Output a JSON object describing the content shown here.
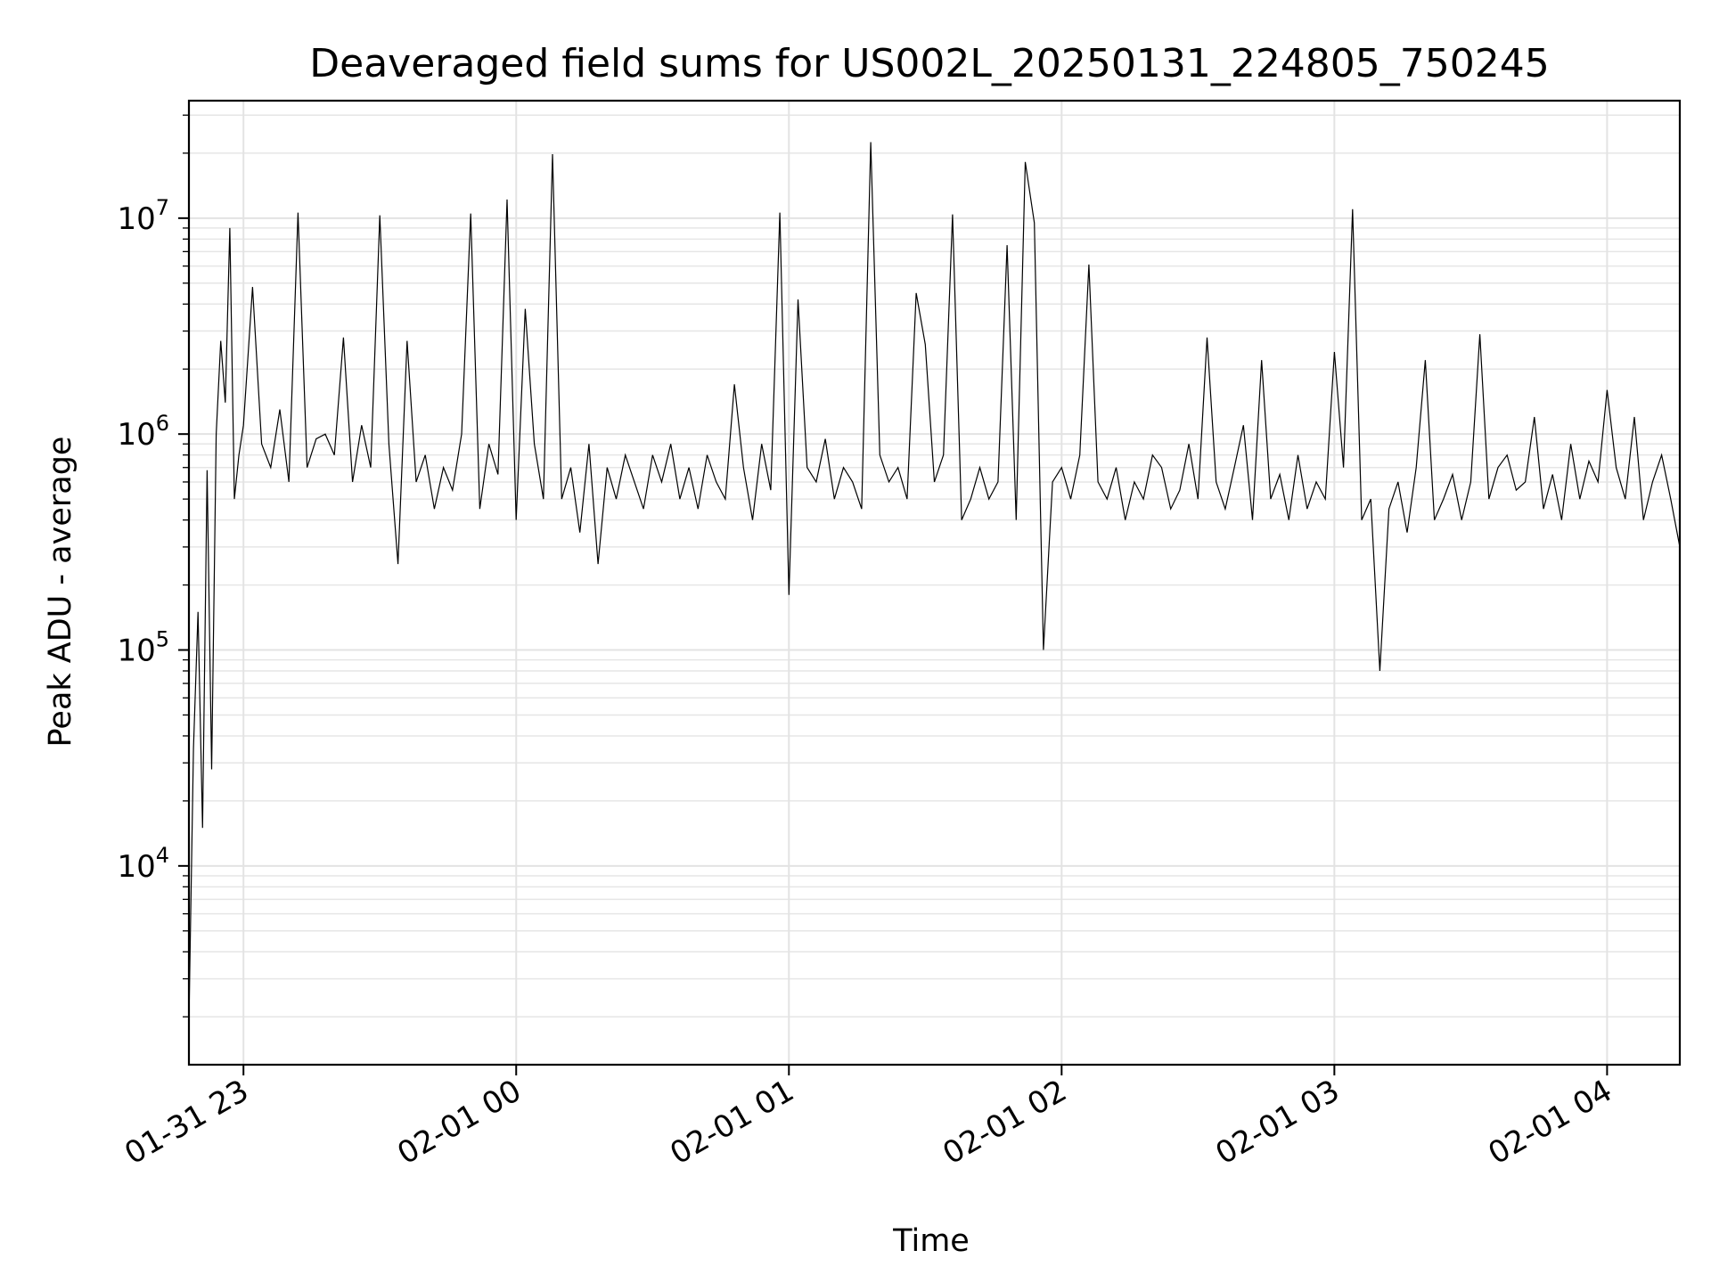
{
  "chart_data": {
    "type": "line",
    "title": "Deaveraged field sums for US002L_20250131_224805_750245",
    "xlabel": "Time",
    "ylabel": "Peak ADU - average",
    "yscale": "log",
    "grid": true,
    "legend": "none",
    "x_range": [
      "2025-01-31 22:48",
      "2025-02-01 04:16"
    ],
    "ylim": [
      1200,
      35000000
    ],
    "x_ticks": [
      {
        "time": "2025-01-31 23:00",
        "label": "01-31 23"
      },
      {
        "time": "2025-02-01 00:00",
        "label": "02-01 00"
      },
      {
        "time": "2025-02-01 01:00",
        "label": "02-01 01"
      },
      {
        "time": "2025-02-01 02:00",
        "label": "02-01 02"
      },
      {
        "time": "2025-02-01 03:00",
        "label": "02-01 03"
      },
      {
        "time": "2025-02-01 04:00",
        "label": "02-01 04"
      }
    ],
    "y_ticks": [
      {
        "value": 10000,
        "base": "10",
        "exp": "4"
      },
      {
        "value": 100000,
        "base": "10",
        "exp": "5"
      },
      {
        "value": 1000000,
        "base": "10",
        "exp": "6"
      },
      {
        "value": 10000000,
        "base": "10",
        "exp": "7"
      }
    ],
    "line_color": "#000000",
    "grid_color": "#e6e6e6",
    "series": [
      {
        "x": [
          "2025-01-31 22:48",
          "2025-01-31 22:49",
          "2025-01-31 22:50",
          "2025-01-31 22:51",
          "2025-01-31 22:52",
          "2025-01-31 22:53",
          "2025-01-31 22:54",
          "2025-01-31 22:55",
          "2025-01-31 22:56",
          "2025-01-31 22:57",
          "2025-01-31 22:58",
          "2025-01-31 22:59",
          "2025-01-31 23:00",
          "2025-01-31 23:02",
          "2025-01-31 23:04",
          "2025-01-31 23:06",
          "2025-01-31 23:08",
          "2025-01-31 23:10",
          "2025-01-31 23:12",
          "2025-01-31 23:14",
          "2025-01-31 23:16",
          "2025-01-31 23:18",
          "2025-01-31 23:20",
          "2025-01-31 23:22",
          "2025-01-31 23:24",
          "2025-01-31 23:26",
          "2025-01-31 23:28",
          "2025-01-31 23:30",
          "2025-01-31 23:32",
          "2025-01-31 23:34",
          "2025-01-31 23:36",
          "2025-01-31 23:38",
          "2025-01-31 23:40",
          "2025-01-31 23:42",
          "2025-01-31 23:44",
          "2025-01-31 23:46",
          "2025-01-31 23:48",
          "2025-01-31 23:50",
          "2025-01-31 23:52",
          "2025-01-31 23:54",
          "2025-01-31 23:56",
          "2025-01-31 23:58",
          "2025-02-01 00:00",
          "2025-02-01 00:02",
          "2025-02-01 00:04",
          "2025-02-01 00:06",
          "2025-02-01 00:08",
          "2025-02-01 00:10",
          "2025-02-01 00:12",
          "2025-02-01 00:14",
          "2025-02-01 00:16",
          "2025-02-01 00:18",
          "2025-02-01 00:20",
          "2025-02-01 00:22",
          "2025-02-01 00:24",
          "2025-02-01 00:26",
          "2025-02-01 00:28",
          "2025-02-01 00:30",
          "2025-02-01 00:32",
          "2025-02-01 00:34",
          "2025-02-01 00:36",
          "2025-02-01 00:38",
          "2025-02-01 00:40",
          "2025-02-01 00:42",
          "2025-02-01 00:44",
          "2025-02-01 00:46",
          "2025-02-01 00:48",
          "2025-02-01 00:50",
          "2025-02-01 00:52",
          "2025-02-01 00:54",
          "2025-02-01 00:56",
          "2025-02-01 00:58",
          "2025-02-01 01:00",
          "2025-02-01 01:02",
          "2025-02-01 01:04",
          "2025-02-01 01:06",
          "2025-02-01 01:08",
          "2025-02-01 01:10",
          "2025-02-01 01:12",
          "2025-02-01 01:14",
          "2025-02-01 01:16",
          "2025-02-01 01:18",
          "2025-02-01 01:20",
          "2025-02-01 01:22",
          "2025-02-01 01:24",
          "2025-02-01 01:26",
          "2025-02-01 01:28",
          "2025-02-01 01:30",
          "2025-02-01 01:32",
          "2025-02-01 01:34",
          "2025-02-01 01:36",
          "2025-02-01 01:38",
          "2025-02-01 01:40",
          "2025-02-01 01:42",
          "2025-02-01 01:44",
          "2025-02-01 01:46",
          "2025-02-01 01:48",
          "2025-02-01 01:50",
          "2025-02-01 01:52",
          "2025-02-01 01:54",
          "2025-02-01 01:56",
          "2025-02-01 01:58",
          "2025-02-01 02:00",
          "2025-02-01 02:02",
          "2025-02-01 02:04",
          "2025-02-01 02:06",
          "2025-02-01 02:08",
          "2025-02-01 02:10",
          "2025-02-01 02:12",
          "2025-02-01 02:14",
          "2025-02-01 02:16",
          "2025-02-01 02:18",
          "2025-02-01 02:20",
          "2025-02-01 02:22",
          "2025-02-01 02:24",
          "2025-02-01 02:26",
          "2025-02-01 02:28",
          "2025-02-01 02:30",
          "2025-02-01 02:32",
          "2025-02-01 02:34",
          "2025-02-01 02:36",
          "2025-02-01 02:38",
          "2025-02-01 02:40",
          "2025-02-01 02:42",
          "2025-02-01 02:44",
          "2025-02-01 02:46",
          "2025-02-01 02:48",
          "2025-02-01 02:50",
          "2025-02-01 02:52",
          "2025-02-01 02:54",
          "2025-02-01 02:56",
          "2025-02-01 02:58",
          "2025-02-01 03:00",
          "2025-02-01 03:02",
          "2025-02-01 03:04",
          "2025-02-01 03:06",
          "2025-02-01 03:08",
          "2025-02-01 03:10",
          "2025-02-01 03:12",
          "2025-02-01 03:14",
          "2025-02-01 03:16",
          "2025-02-01 03:18",
          "2025-02-01 03:20",
          "2025-02-01 03:22",
          "2025-02-01 03:24",
          "2025-02-01 03:26",
          "2025-02-01 03:28",
          "2025-02-01 03:30",
          "2025-02-01 03:32",
          "2025-02-01 03:34",
          "2025-02-01 03:36",
          "2025-02-01 03:38",
          "2025-02-01 03:40",
          "2025-02-01 03:42",
          "2025-02-01 03:44",
          "2025-02-01 03:46",
          "2025-02-01 03:48",
          "2025-02-01 03:50",
          "2025-02-01 03:52",
          "2025-02-01 03:54",
          "2025-02-01 03:56",
          "2025-02-01 03:58",
          "2025-02-01 04:00",
          "2025-02-01 04:02",
          "2025-02-01 04:04",
          "2025-02-01 04:06",
          "2025-02-01 04:08",
          "2025-02-01 04:10",
          "2025-02-01 04:12",
          "2025-02-01 04:14",
          "2025-02-01 04:16"
        ],
        "y": [
          1900,
          35000,
          150000,
          15000,
          680000,
          28000,
          1000000,
          2700000,
          1400000,
          9000000,
          500000,
          800000,
          1100000,
          4800000,
          900000,
          700000,
          1300000,
          600000,
          10600000,
          700000,
          950000,
          1000000,
          800000,
          2800000,
          600000,
          1100000,
          700000,
          10300000,
          900000,
          250000,
          2700000,
          600000,
          800000,
          450000,
          700000,
          550000,
          1000000,
          10500000,
          450000,
          900000,
          650000,
          12200000,
          400000,
          3800000,
          900000,
          500000,
          19800000,
          500000,
          700000,
          350000,
          900000,
          250000,
          700000,
          500000,
          800000,
          600000,
          450000,
          800000,
          600000,
          900000,
          500000,
          700000,
          450000,
          800000,
          600000,
          500000,
          1700000,
          700000,
          400000,
          900000,
          550000,
          10600000,
          180000,
          4200000,
          700000,
          600000,
          950000,
          500000,
          700000,
          600000,
          450000,
          22500000,
          800000,
          600000,
          700000,
          500000,
          4500000,
          2600000,
          600000,
          800000,
          10400000,
          400000,
          500000,
          700000,
          500000,
          600000,
          7500000,
          400000,
          18200000,
          9500000,
          100000,
          600000,
          700000,
          500000,
          800000,
          6100000,
          600000,
          500000,
          700000,
          400000,
          600000,
          500000,
          800000,
          700000,
          450000,
          550000,
          900000,
          500000,
          2800000,
          600000,
          450000,
          700000,
          1100000,
          400000,
          2200000,
          500000,
          650000,
          400000,
          800000,
          450000,
          600000,
          500000,
          2400000,
          700000,
          11000000,
          400000,
          500000,
          80000,
          450000,
          600000,
          350000,
          700000,
          2200000,
          400000,
          500000,
          650000,
          400000,
          600000,
          2900000,
          500000,
          700000,
          800000,
          550000,
          600000,
          1200000,
          450000,
          650000,
          400000,
          900000,
          500000,
          750000,
          600000,
          1600000,
          700000,
          500000,
          1200000,
          400000,
          600000,
          800000,
          500000,
          300000
        ]
      }
    ]
  }
}
